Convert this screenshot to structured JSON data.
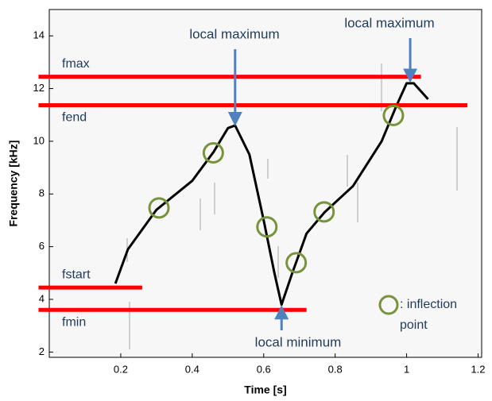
{
  "chart_data": {
    "type": "line",
    "xlabel": "Time [s]",
    "ylabel": "Frequency [kHz]",
    "xlim": [
      0,
      1.21
    ],
    "ylim": [
      1.8,
      15.0
    ],
    "xticks": [
      0.2,
      0.4,
      0.6,
      0.8,
      1,
      1.2
    ],
    "yticks": [
      2,
      4,
      6,
      8,
      10,
      12,
      14
    ],
    "series": [
      {
        "color": "#000000",
        "x": [
          0.185,
          0.22,
          0.3,
          0.4,
          0.46,
          0.5,
          0.52,
          0.56,
          0.6,
          0.63,
          0.65,
          0.68,
          0.72,
          0.77,
          0.85,
          0.93,
          0.97,
          1.0,
          1.02,
          1.06
        ],
        "values": [
          4.6,
          5.9,
          7.4,
          8.5,
          9.6,
          10.5,
          10.6,
          9.5,
          7.0,
          5.0,
          3.8,
          5.0,
          6.5,
          7.3,
          8.3,
          10.0,
          11.3,
          12.2,
          12.2,
          11.6
        ]
      }
    ],
    "reference_lines": [
      {
        "label": "fmax",
        "value": 12.45,
        "xspan": [
          -0.03,
          1.04
        ],
        "color": "#ff0000"
      },
      {
        "label": "fend",
        "value": 11.37,
        "xspan": [
          -0.03,
          1.17
        ],
        "color": "#ff0000"
      },
      {
        "label": "fstart",
        "value": 4.45,
        "xspan": [
          -0.03,
          0.26
        ],
        "color": "#ff0000"
      },
      {
        "label": "fmin",
        "value": 3.6,
        "xspan": [
          -0.03,
          0.72
        ],
        "color": "#ff0000"
      }
    ],
    "inflection_points": {
      "legend": [
        ": inflection",
        "point"
      ],
      "color": "#77933c",
      "x": [
        0.307,
        0.459,
        0.609,
        0.691,
        0.769,
        0.963
      ],
      "values": [
        7.47,
        9.56,
        6.75,
        5.39,
        7.32,
        10.98
      ]
    },
    "annotations": [
      {
        "text": "local maximum",
        "x": 0.52,
        "y": 10.6
      },
      {
        "text": "local maximum",
        "x": 1.01,
        "y": 12.25
      },
      {
        "text": "local minimum",
        "x": 0.65,
        "y": 3.75
      }
    ],
    "arrow_color": "#4f81bd"
  }
}
